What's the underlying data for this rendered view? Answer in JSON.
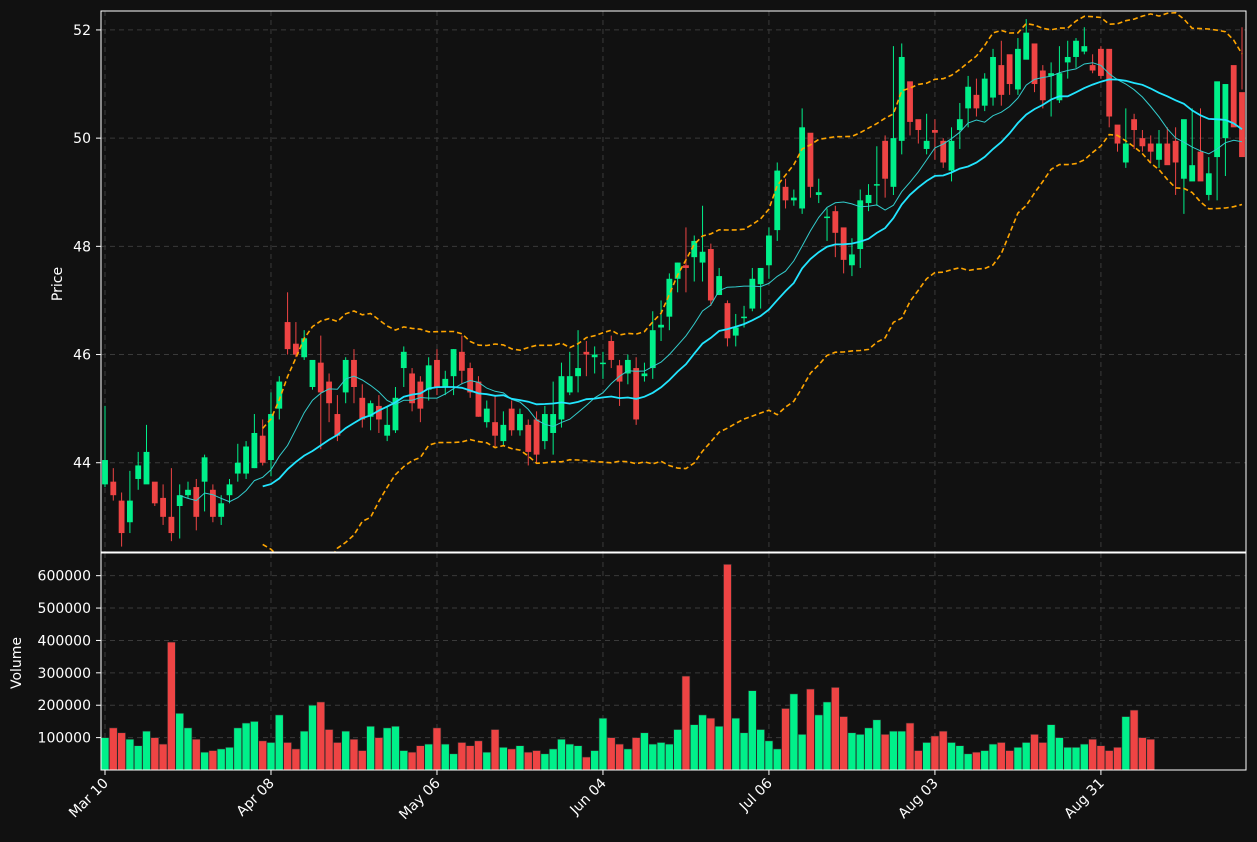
{
  "chart_data": [
    {
      "type": "candlestick",
      "panel": "price",
      "ylabel": "Price",
      "yticks": [
        44,
        46,
        48,
        50,
        52
      ],
      "ylim": [
        42.35,
        52.35
      ],
      "grid": true,
      "xticks": [
        "Mar 10",
        "Apr 08",
        "May 06",
        "Jun 04",
        "Jul 06",
        "Aug 03",
        "Aug 31"
      ],
      "up_color": "#00f08a",
      "down_color": "#ee4444",
      "overlays": [
        {
          "kind": "moving-average-short",
          "color": "#33cccc"
        },
        {
          "kind": "moving-average-long",
          "color": "#22e5ff"
        },
        {
          "kind": "bollinger-upper",
          "color": "#ffa500",
          "style": "dashed"
        },
        {
          "kind": "bollinger-lower",
          "color": "#ffa500",
          "style": "dashed"
        }
      ],
      "closes": [
        44.05,
        43.4,
        42.7,
        43.3,
        43.95,
        44.2,
        43.25,
        43.0,
        42.7,
        43.4,
        43.5,
        43.0,
        44.1,
        43.0,
        43.25,
        43.6,
        44.0,
        44.3,
        44.55,
        44.0,
        44.9,
        45.5,
        46.1,
        46.0,
        46.3,
        45.9,
        45.3,
        45.1,
        44.5,
        45.9,
        45.4,
        44.8,
        45.1,
        44.8,
        44.7,
        45.2,
        46.05,
        45.1,
        45.0,
        45.8,
        45.4,
        45.55,
        46.1,
        45.7,
        45.3,
        44.85,
        45.0,
        44.5,
        44.7,
        44.6,
        44.9,
        44.2,
        44.15,
        44.9,
        44.9,
        45.6,
        45.6,
        45.75,
        46.0,
        46.0,
        45.85,
        45.9,
        45.5,
        45.9,
        44.8,
        45.65,
        46.45,
        46.55,
        47.4,
        47.7,
        47.6,
        48.1,
        47.9,
        47.0,
        47.45,
        46.3,
        46.5,
        46.7,
        47.4,
        47.6,
        48.2,
        49.4,
        48.85,
        48.9,
        50.2,
        49.1,
        49.0,
        48.55,
        48.25,
        47.75,
        47.85,
        48.85,
        48.95,
        49.15,
        49.25,
        50.0,
        51.5,
        50.3,
        50.15,
        49.95,
        50.1,
        49.55,
        49.95,
        50.35,
        50.95,
        50.55,
        51.1,
        51.5,
        50.8,
        51.0,
        51.65,
        51.95,
        51.0,
        50.7,
        51.2,
        51.2,
        51.5,
        51.8,
        51.7,
        51.25,
        51.15,
        50.4,
        49.9,
        49.9,
        50.15,
        49.85,
        49.75,
        49.9,
        49.5,
        49.55,
        50.35,
        49.5,
        49.2,
        49.35,
        51.05,
        51.0,
        50.2,
        49.65
      ],
      "opens": [
        43.6,
        43.65,
        43.3,
        42.9,
        43.7,
        43.6,
        43.65,
        43.35,
        43.0,
        43.2,
        43.4,
        43.55,
        43.65,
        43.5,
        43.0,
        43.4,
        43.8,
        43.8,
        43.9,
        44.5,
        44.05,
        45.0,
        46.6,
        46.2,
        45.95,
        45.4,
        45.85,
        45.5,
        44.9,
        45.3,
        45.9,
        45.2,
        44.85,
        45.05,
        44.5,
        44.6,
        45.75,
        45.65,
        45.5,
        45.35,
        45.9,
        45.4,
        45.6,
        46.05,
        45.75,
        45.5,
        44.75,
        44.75,
        44.4,
        45.0,
        44.6,
        44.7,
        44.8,
        44.4,
        44.55,
        44.8,
        45.3,
        45.6,
        46.05,
        45.95,
        45.85,
        46.25,
        45.8,
        45.65,
        45.75,
        45.6,
        45.75,
        46.5,
        46.7,
        47.4,
        47.65,
        47.8,
        47.7,
        47.95,
        47.1,
        46.95,
        46.35,
        46.7,
        46.85,
        47.3,
        47.65,
        48.3,
        49.1,
        48.85,
        48.7,
        50.1,
        48.95,
        48.55,
        48.65,
        48.35,
        47.65,
        47.95,
        48.8,
        49.15,
        49.95,
        49.1,
        49.95,
        51.05,
        50.35,
        49.8,
        50.15,
        49.95,
        49.4,
        50.15,
        50.55,
        50.8,
        50.6,
        50.75,
        51.35,
        51.55,
        50.9,
        51.45,
        51.75,
        51.25,
        51.15,
        50.7,
        51.4,
        51.5,
        51.6,
        51.35,
        51.65,
        51.65,
        50.25,
        49.55,
        50.35,
        50.0,
        49.9,
        49.6,
        49.9,
        49.95,
        49.25,
        49.2,
        49.75,
        48.95,
        49.65,
        50.0,
        51.35,
        50.85,
        49.85
      ],
      "highs": [
        45.05,
        43.9,
        43.45,
        43.85,
        44.2,
        44.7,
        43.55,
        43.6,
        43.9,
        43.6,
        43.65,
        43.7,
        44.15,
        43.6,
        43.4,
        43.7,
        44.35,
        44.4,
        44.9,
        44.8,
        45.3,
        45.6,
        47.15,
        46.6,
        46.45,
        45.85,
        46.35,
        45.65,
        45.25,
        45.95,
        46.1,
        45.45,
        45.15,
        45.25,
        45.05,
        45.4,
        46.15,
        45.75,
        45.6,
        45.95,
        46.1,
        45.7,
        46.1,
        46.35,
        45.85,
        45.6,
        45.15,
        45.25,
        44.95,
        45.15,
        45.0,
        44.8,
        44.95,
        45.05,
        45.5,
        45.85,
        46.05,
        46.45,
        46.25,
        46.15,
        46.05,
        46.35,
        45.9,
        46.0,
        45.95,
        45.85,
        46.8,
        47.0,
        47.5,
        47.7,
        48.35,
        48.2,
        48.75,
        48.05,
        47.6,
        47.0,
        46.75,
        46.9,
        47.6,
        47.6,
        48.35,
        49.55,
        49.25,
        49.05,
        50.55,
        49.95,
        49.25,
        48.7,
        48.75,
        48.05,
        48.15,
        49.05,
        49.15,
        49.85,
        50.05,
        51.7,
        51.75,
        50.55,
        50.25,
        50.45,
        50.35,
        50.0,
        50.2,
        50.65,
        51.15,
        51.1,
        51.2,
        51.65,
        51.8,
        51.45,
        51.85,
        52.2,
        51.5,
        51.35,
        51.4,
        51.7,
        51.8,
        51.85,
        52.05,
        51.55,
        51.7,
        51.35,
        50.2,
        50.55,
        50.45,
        50.15,
        50.05,
        50.15,
        50.2,
        50.2,
        49.65,
        50.55,
        50.55,
        49.65,
        49.7,
        50.25,
        51.25,
        52.05,
        51.3,
        49.85
      ],
      "lows": [
        43.55,
        43.3,
        42.45,
        42.7,
        43.5,
        43.8,
        43.2,
        42.85,
        42.55,
        42.6,
        43.35,
        42.75,
        43.1,
        42.9,
        42.85,
        43.25,
        43.65,
        43.7,
        43.9,
        43.95,
        43.75,
        44.8,
        46.0,
        45.95,
        45.9,
        45.35,
        44.25,
        44.75,
        44.4,
        45.1,
        45.1,
        44.65,
        44.6,
        44.55,
        44.4,
        44.55,
        45.4,
        44.95,
        44.75,
        45.15,
        45.25,
        45.25,
        45.25,
        45.45,
        45.2,
        44.85,
        44.65,
        44.3,
        44.3,
        44.5,
        44.5,
        43.95,
        44.0,
        44.25,
        44.15,
        44.65,
        45.25,
        45.3,
        45.6,
        45.65,
        45.55,
        45.75,
        45.05,
        45.45,
        44.7,
        45.5,
        45.55,
        46.25,
        46.45,
        47.15,
        47.15,
        47.35,
        47.35,
        46.9,
        47.1,
        46.15,
        46.15,
        46.5,
        46.8,
        46.85,
        47.4,
        48.1,
        48.7,
        48.75,
        48.6,
        48.9,
        48.8,
        48.1,
        47.8,
        47.5,
        47.45,
        47.6,
        48.65,
        48.75,
        48.9,
        48.95,
        49.7,
        50.05,
        49.9,
        49.7,
        49.6,
        49.45,
        49.2,
        49.8,
        50.2,
        50.4,
        50.5,
        50.6,
        50.6,
        50.8,
        50.8,
        51.6,
        50.85,
        50.55,
        50.4,
        50.65,
        51.1,
        51.3,
        51.55,
        51.2,
        51.1,
        50.2,
        49.75,
        49.45,
        49.8,
        49.75,
        49.55,
        49.45,
        49.65,
        48.95,
        48.6,
        49.45,
        49.4,
        48.85,
        48.85,
        49.3,
        50.85,
        50.9,
        50.05,
        49.45
      ]
    },
    {
      "type": "bar",
      "panel": "volume",
      "ylabel": "Volume",
      "yticks": [
        100000,
        200000,
        300000,
        400000,
        500000,
        600000
      ],
      "ylim": [
        0,
        670000
      ],
      "grid": true,
      "values": [
        100000,
        130000,
        115000,
        95000,
        75000,
        120000,
        100000,
        80000,
        395000,
        175000,
        130000,
        95000,
        55000,
        60000,
        65000,
        70000,
        130000,
        145000,
        150000,
        90000,
        85000,
        170000,
        85000,
        65000,
        120000,
        200000,
        210000,
        125000,
        85000,
        120000,
        95000,
        60000,
        135000,
        100000,
        130000,
        135000,
        60000,
        55000,
        75000,
        80000,
        130000,
        80000,
        50000,
        85000,
        75000,
        90000,
        55000,
        125000,
        70000,
        65000,
        75000,
        55000,
        60000,
        50000,
        65000,
        95000,
        80000,
        75000,
        40000,
        60000,
        160000,
        100000,
        80000,
        65000,
        100000,
        115000,
        80000,
        85000,
        80000,
        125000,
        290000,
        140000,
        170000,
        160000,
        135000,
        635000,
        160000,
        115000,
        245000,
        125000,
        90000,
        65000,
        190000,
        235000,
        110000,
        250000,
        170000,
        210000,
        255000,
        165000,
        115000,
        110000,
        130000,
        155000,
        110000,
        120000,
        120000,
        145000,
        60000,
        85000,
        105000,
        120000,
        85000,
        75000,
        50000,
        55000,
        60000,
        80000,
        85000,
        60000,
        70000,
        85000,
        110000,
        85000,
        140000,
        100000,
        70000,
        70000,
        80000,
        95000,
        75000,
        60000,
        70000,
        165000,
        185000,
        100000,
        95000
      ],
      "ticks_label_suffix": ""
    }
  ]
}
